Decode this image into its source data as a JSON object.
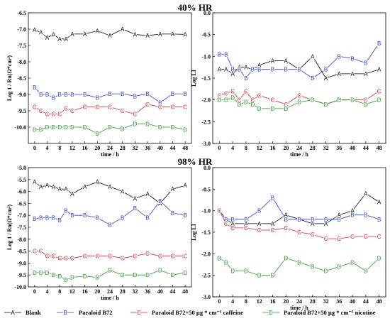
{
  "titles": {
    "top": "40% HR",
    "bottom": "98% HR"
  },
  "legend": [
    {
      "marker": "A",
      "label": "Blank",
      "color": "#000000"
    },
    {
      "marker": "B",
      "label": "Paraloid B72",
      "color": "#1f3fe0"
    },
    {
      "marker": "C",
      "label": "Paraloid B72+50 µg * cm⁻² caffeine",
      "color": "#e01f1f"
    },
    {
      "marker": "D",
      "label": "Paraloid B72+50 µg * cm⁻² nicotine",
      "color": "#1a9a1a"
    }
  ],
  "chart_data": [
    {
      "id": "chart-40-left",
      "type": "line",
      "xlabel": "time / h",
      "ylabel": "Log 1 / Rn(Ω*cm²)",
      "xlim": [
        -2,
        50
      ],
      "ylim": [
        -10.5,
        -6.5
      ],
      "xticks": [
        0,
        4,
        8,
        12,
        16,
        20,
        24,
        28,
        32,
        36,
        40,
        44,
        48
      ],
      "yticks": [
        -6.5,
        -7.0,
        -7.5,
        -8.0,
        -8.5,
        -9.0,
        -9.5,
        -10.0
      ],
      "ytick_labels": [
        "-6.5",
        "-7.0",
        "-7.5",
        "-8.0",
        "-8.5",
        "-9.0",
        "-9.5",
        "-10.0"
      ],
      "series": [
        {
          "marker": "A",
          "color": "#000000",
          "x": [
            0,
            2,
            4,
            6,
            8,
            10,
            12,
            16,
            20,
            24,
            28,
            32,
            36,
            40,
            44,
            48
          ],
          "y": [
            -7.02,
            -7.1,
            -7.26,
            -7.16,
            -7.3,
            -7.3,
            -7.15,
            -7.15,
            -7.05,
            -7.2,
            -7.0,
            -7.16,
            -7.2,
            -7.15,
            -7.15,
            -7.16
          ]
        },
        {
          "marker": "B",
          "color": "#1f3fe0",
          "x": [
            0,
            2,
            4,
            6,
            8,
            10,
            12,
            16,
            20,
            24,
            28,
            32,
            36,
            40,
            44,
            48
          ],
          "y": [
            -8.78,
            -9.0,
            -9.0,
            -9.1,
            -9.0,
            -9.0,
            -9.0,
            -9.0,
            -9.1,
            -8.98,
            -8.98,
            -9.05,
            -8.98,
            -9.25,
            -8.98,
            -8.98
          ]
        },
        {
          "marker": "C",
          "color": "#e01f1f",
          "x": [
            0,
            2,
            4,
            6,
            8,
            10,
            12,
            16,
            20,
            24,
            28,
            32,
            36,
            40,
            44,
            48
          ],
          "y": [
            -9.38,
            -9.5,
            -9.6,
            -9.6,
            -9.6,
            -9.42,
            -9.5,
            -9.38,
            -9.38,
            -9.38,
            -9.5,
            -9.6,
            -9.3,
            -9.38,
            -9.38,
            -9.38
          ]
        },
        {
          "marker": "D",
          "color": "#1a9a1a",
          "x": [
            0,
            2,
            4,
            6,
            8,
            10,
            12,
            16,
            20,
            24,
            28,
            32,
            36,
            40,
            44,
            48
          ],
          "y": [
            -10.08,
            -10.08,
            -10.0,
            -10.0,
            -10.0,
            -10.0,
            -10.0,
            -10.0,
            -10.2,
            -10.0,
            -10.05,
            -9.9,
            -9.9,
            -10.0,
            -10.0,
            -10.08
          ]
        }
      ]
    },
    {
      "id": "chart-40-right",
      "type": "line",
      "xlabel": "time / h",
      "ylabel": "Log LI",
      "xlim": [
        -2,
        50
      ],
      "ylim": [
        -3.0,
        0.0
      ],
      "xticks": [
        0,
        4,
        8,
        12,
        16,
        20,
        24,
        28,
        32,
        36,
        40,
        44,
        48
      ],
      "yticks": [
        0.0,
        -0.5,
        -1.0,
        -1.5,
        -2.0,
        -2.5,
        -3.0
      ],
      "ytick_labels": [
        "0.0",
        "-0.5",
        "-1.0",
        "-1.5",
        "-2.0",
        "-2.5",
        "-3.0"
      ],
      "series": [
        {
          "marker": "A",
          "color": "#000000",
          "x": [
            0,
            2,
            4,
            6,
            8,
            10,
            12,
            16,
            20,
            24,
            28,
            32,
            36,
            40,
            44,
            48
          ],
          "y": [
            -1.3,
            -1.3,
            -1.4,
            -1.25,
            -1.25,
            -1.3,
            -1.2,
            -1.1,
            -1.1,
            -1.3,
            -1.0,
            -1.5,
            -1.4,
            -1.4,
            -1.4,
            -1.3
          ]
        },
        {
          "marker": "B",
          "color": "#1f3fe0",
          "x": [
            0,
            2,
            4,
            6,
            8,
            10,
            12,
            16,
            20,
            24,
            28,
            32,
            36,
            40,
            44,
            48
          ],
          "y": [
            -0.95,
            -0.95,
            -1.3,
            -1.3,
            -1.5,
            -1.3,
            -1.3,
            -1.3,
            -1.3,
            -1.3,
            -1.5,
            -1.3,
            -1.0,
            -1.05,
            -1.15,
            -0.7
          ]
        },
        {
          "marker": "C",
          "color": "#e01f1f",
          "x": [
            0,
            2,
            4,
            6,
            8,
            10,
            12,
            16,
            20,
            24,
            28,
            32,
            36,
            40,
            44,
            48
          ],
          "y": [
            -1.9,
            -1.85,
            -1.8,
            -2.0,
            -1.8,
            -2.0,
            -1.9,
            -2.0,
            -2.1,
            -1.9,
            -2.0,
            -2.1,
            -2.0,
            -2.0,
            -2.0,
            -1.8
          ]
        },
        {
          "marker": "D",
          "color": "#1a9a1a",
          "x": [
            0,
            2,
            4,
            6,
            8,
            10,
            12,
            16,
            20,
            24,
            28,
            32,
            36,
            40,
            44,
            48
          ],
          "y": [
            -2.0,
            -2.0,
            -1.95,
            -2.1,
            -2.05,
            -2.1,
            -2.2,
            -2.2,
            -2.2,
            -2.05,
            -2.0,
            -2.1,
            -2.0,
            -2.0,
            -2.1,
            -2.0
          ]
        }
      ]
    },
    {
      "id": "chart-98-left",
      "type": "line",
      "xlabel": "time / h",
      "ylabel": "Log 1 / Rn(Ω*cm²)",
      "xlim": [
        -2,
        50
      ],
      "ylim": [
        -10.0,
        -5.0
      ],
      "xticks": [
        0,
        4,
        8,
        12,
        16,
        20,
        24,
        28,
        32,
        36,
        40,
        44,
        48
      ],
      "yticks": [
        -5.0,
        -5.5,
        -6.0,
        -6.5,
        -7.0,
        -7.5,
        -8.0,
        -8.5,
        -9.0,
        -9.5,
        -10.0
      ],
      "ytick_labels": [
        "-5.0",
        "-5.5",
        "-6.0",
        "-6.5",
        "-7.0",
        "-7.5",
        "-8.0",
        "-8.5",
        "-9.0",
        "-9.5",
        "-10.0"
      ],
      "series": [
        {
          "marker": "A",
          "color": "#000000",
          "x": [
            0,
            2,
            4,
            6,
            8,
            10,
            12,
            16,
            20,
            24,
            28,
            32,
            36,
            40,
            44,
            48
          ],
          "y": [
            -5.6,
            -5.8,
            -5.75,
            -5.8,
            -5.9,
            -5.9,
            -6.1,
            -5.8,
            -5.6,
            -5.8,
            -6.0,
            -6.3,
            -6.1,
            -6.5,
            -5.9,
            -5.75
          ]
        },
        {
          "marker": "B",
          "color": "#1f3fe0",
          "x": [
            0,
            2,
            4,
            6,
            8,
            10,
            12,
            16,
            20,
            24,
            28,
            32,
            36,
            40,
            44,
            48
          ],
          "y": [
            -7.15,
            -7.1,
            -7.1,
            -7.1,
            -7.2,
            -6.8,
            -7.0,
            -7.0,
            -7.1,
            -7.4,
            -7.1,
            -6.7,
            -7.1,
            -6.4,
            -6.9,
            -7.0
          ]
        },
        {
          "marker": "C",
          "color": "#e01f1f",
          "x": [
            0,
            2,
            4,
            6,
            8,
            10,
            12,
            16,
            20,
            24,
            28,
            32,
            36,
            40,
            44,
            48
          ],
          "y": [
            -8.5,
            -8.5,
            -8.7,
            -8.7,
            -8.8,
            -8.8,
            -8.8,
            -8.7,
            -8.7,
            -8.7,
            -8.8,
            -8.7,
            -8.6,
            -8.7,
            -8.7,
            -8.7
          ]
        },
        {
          "marker": "D",
          "color": "#1a9a1a",
          "x": [
            0,
            2,
            4,
            6,
            8,
            10,
            12,
            16,
            20,
            24,
            28,
            32,
            36,
            40,
            44,
            48
          ],
          "y": [
            -9.4,
            -9.4,
            -9.4,
            -9.5,
            -9.55,
            -9.7,
            -9.6,
            -9.55,
            -9.6,
            -9.3,
            -9.5,
            -9.5,
            -9.5,
            -9.3,
            -9.5,
            -9.4
          ]
        }
      ]
    },
    {
      "id": "chart-98-right",
      "type": "line",
      "xlabel": "time / h",
      "ylabel": "Log LI",
      "xlim": [
        -2,
        50
      ],
      "ylim": [
        -3.0,
        0.0
      ],
      "xticks": [
        0,
        4,
        8,
        12,
        16,
        20,
        24,
        28,
        32,
        36,
        40,
        44,
        48
      ],
      "yticks": [
        0.0,
        -0.5,
        -1.0,
        -1.5,
        -2.0,
        -2.5,
        -3.0
      ],
      "ytick_labels": [
        "0.0",
        "-0.5",
        "-1.0",
        "-1.5",
        "-2.0",
        "-2.5",
        "-3.0"
      ],
      "series": [
        {
          "marker": "A",
          "color": "#000000",
          "x": [
            0,
            2,
            4,
            8,
            12,
            16,
            20,
            24,
            28,
            32,
            36,
            40,
            44,
            48
          ],
          "y": [
            -1.0,
            -1.2,
            -1.3,
            -1.3,
            -1.3,
            -1.3,
            -1.1,
            -1.2,
            -1.3,
            -1.3,
            -1.1,
            -1.0,
            -0.6,
            -0.8
          ]
        },
        {
          "marker": "B",
          "color": "#1f3fe0",
          "x": [
            0,
            2,
            4,
            8,
            12,
            16,
            20,
            24,
            28,
            32,
            36,
            40,
            44,
            48
          ],
          "y": [
            -1.0,
            -1.2,
            -1.2,
            -1.2,
            -1.0,
            -0.7,
            -1.2,
            -1.2,
            -1.2,
            -1.2,
            -1.2,
            -1.1,
            -1.1,
            -1.2
          ]
        },
        {
          "marker": "C",
          "color": "#e01f1f",
          "x": [
            0,
            2,
            4,
            8,
            12,
            16,
            20,
            24,
            28,
            32,
            36,
            40,
            44,
            48
          ],
          "y": [
            -1.0,
            -1.3,
            -1.4,
            -1.4,
            -1.45,
            -1.45,
            -1.4,
            -1.5,
            -1.55,
            -1.65,
            -1.65,
            -1.6,
            -1.6,
            -1.6
          ]
        },
        {
          "marker": "D",
          "color": "#1a9a1a",
          "x": [
            0,
            2,
            4,
            8,
            12,
            16,
            20,
            24,
            28,
            32,
            36,
            40,
            44,
            48
          ],
          "y": [
            -2.1,
            -2.2,
            -2.4,
            -2.4,
            -2.5,
            -2.5,
            -2.1,
            -2.2,
            -2.3,
            -2.4,
            -2.3,
            -2.2,
            -2.4,
            -2.1
          ]
        }
      ]
    }
  ]
}
